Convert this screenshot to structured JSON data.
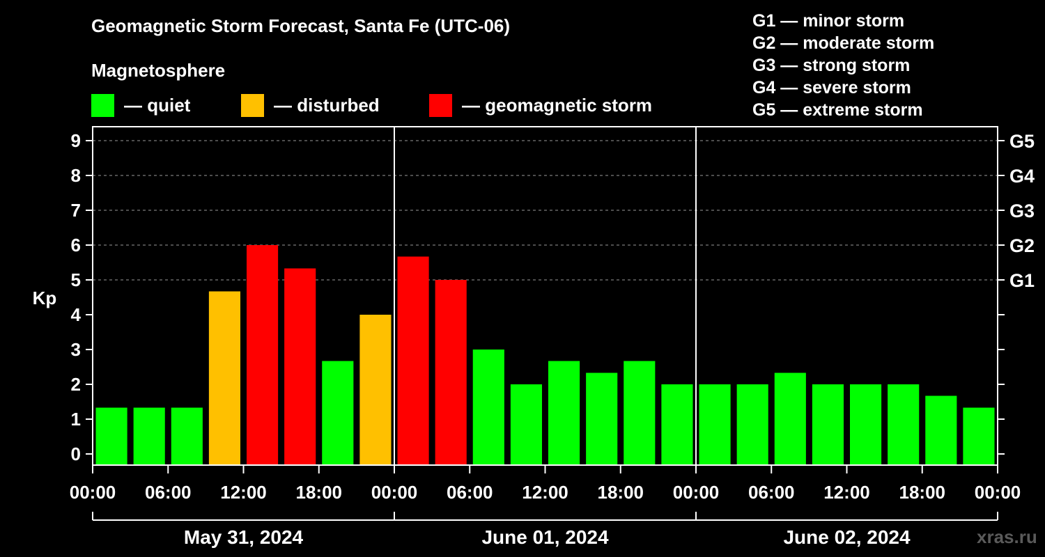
{
  "header": {
    "title": "Geomagnetic Storm Forecast, Santa Fe (UTC-06)",
    "subtitle": "Magnetosphere"
  },
  "legend": [
    {
      "label": "— quiet",
      "color": "#00ff00"
    },
    {
      "label": "— disturbed",
      "color": "#ffc000"
    },
    {
      "label": "— geomagnetic storm",
      "color": "#ff0000"
    }
  ],
  "storm_scale": [
    "G1 — minor storm",
    "G2 — moderate storm",
    "G3 — strong storm",
    "G4 — severe storm",
    "G5 — extreme storm"
  ],
  "watermark": "xras.ru",
  "chart_data": {
    "type": "bar",
    "ylabel": "Kp",
    "ylim": [
      0,
      9
    ],
    "yticks": [
      0,
      1,
      2,
      3,
      4,
      5,
      6,
      7,
      8,
      9
    ],
    "right_axis_labels": [
      {
        "kp": 5,
        "label": "G1"
      },
      {
        "kp": 6,
        "label": "G2"
      },
      {
        "kp": 7,
        "label": "G3"
      },
      {
        "kp": 8,
        "label": "G4"
      },
      {
        "kp": 9,
        "label": "G5"
      }
    ],
    "xtick_labels": [
      "00:00",
      "06:00",
      "12:00",
      "18:00",
      "00:00",
      "06:00",
      "12:00",
      "18:00",
      "00:00",
      "06:00",
      "12:00",
      "18:00",
      "00:00"
    ],
    "days": [
      "May 31, 2024",
      "June 01, 2024",
      "June 02, 2024"
    ],
    "grid": true,
    "colors": {
      "quiet": "#00ff00",
      "disturbed": "#ffc000",
      "storm": "#ff0000"
    },
    "values": [
      1.33,
      1.33,
      1.33,
      4.67,
      6.0,
      5.33,
      2.67,
      4.0,
      5.67,
      5.0,
      3.0,
      2.0,
      2.67,
      2.33,
      2.67,
      2.0,
      2.0,
      2.0,
      2.33,
      2.0,
      2.0,
      2.0,
      1.67,
      1.33
    ],
    "levels": [
      "quiet",
      "quiet",
      "quiet",
      "disturbed",
      "storm",
      "storm",
      "quiet",
      "disturbed",
      "storm",
      "storm",
      "quiet",
      "quiet",
      "quiet",
      "quiet",
      "quiet",
      "quiet",
      "quiet",
      "quiet",
      "quiet",
      "quiet",
      "quiet",
      "quiet",
      "quiet",
      "quiet"
    ]
  }
}
